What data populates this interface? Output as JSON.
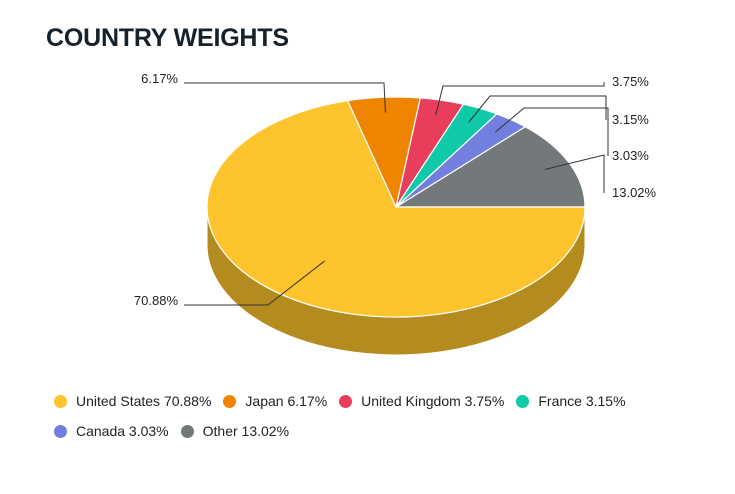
{
  "chart_data": {
    "type": "pie",
    "title": "COUNTRY WEIGHTS",
    "slices": [
      {
        "name": "United States",
        "value": 70.88,
        "label": "70.88%",
        "legend": "United States 70.88%",
        "color": "#fdc42d",
        "side": "#b48b1e"
      },
      {
        "name": "Japan",
        "value": 6.17,
        "label": "6.17%",
        "legend": "Japan 6.17%",
        "color": "#ee8400",
        "side": "#a95e00"
      },
      {
        "name": "United Kingdom",
        "value": 3.75,
        "label": "3.75%",
        "legend": "United Kingdom 3.75%",
        "color": "#e83e5c",
        "side": "#a52c41"
      },
      {
        "name": "France",
        "value": 3.15,
        "label": "3.15%",
        "legend": "France 3.15%",
        "color": "#10c9a9",
        "side": "#0b8f78"
      },
      {
        "name": "Canada",
        "value": 3.03,
        "label": "3.03%",
        "legend": "Canada 3.03%",
        "color": "#737fdf",
        "side": "#525a9e"
      },
      {
        "name": "Other",
        "value": 13.02,
        "label": "13.02%",
        "legend": "Other 13.02%",
        "color": "#73787b",
        "side": "#525557"
      }
    ],
    "legend_position": "bottom-left"
  }
}
